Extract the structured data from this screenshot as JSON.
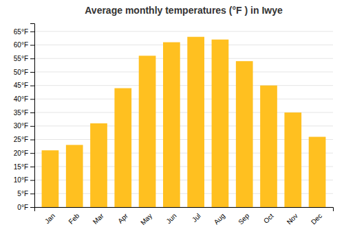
{
  "chart_data": {
    "type": "bar",
    "title": "Average monthly temperatures (°F ) in Iwye",
    "categories": [
      "Jan",
      "Feb",
      "Mar",
      "Apr",
      "May",
      "Jun",
      "Jul",
      "Aug",
      "Sep",
      "Oct",
      "Nov",
      "Dec"
    ],
    "values": [
      21,
      23,
      31,
      44,
      56,
      61,
      63,
      62,
      54,
      45,
      35,
      26
    ],
    "color": "#FFC020",
    "ylim": [
      0,
      68
    ],
    "yticks": [
      {
        "value": 0,
        "label": "0°F"
      },
      {
        "value": 5,
        "label": "5°F"
      },
      {
        "value": 10,
        "label": "10°F"
      },
      {
        "value": 15,
        "label": "15°F"
      },
      {
        "value": 20,
        "label": "20°F"
      },
      {
        "value": 25,
        "label": "25°F"
      },
      {
        "value": 30,
        "label": "30°F"
      },
      {
        "value": 35,
        "label": "35°F"
      },
      {
        "value": 40,
        "label": "40°F"
      },
      {
        "value": 45,
        "label": "45°F"
      },
      {
        "value": 50,
        "label": "50°F"
      },
      {
        "value": 55,
        "label": "55°F"
      },
      {
        "value": 60,
        "label": "60°F"
      },
      {
        "value": 65,
        "label": "65°F"
      }
    ],
    "grid": true
  }
}
